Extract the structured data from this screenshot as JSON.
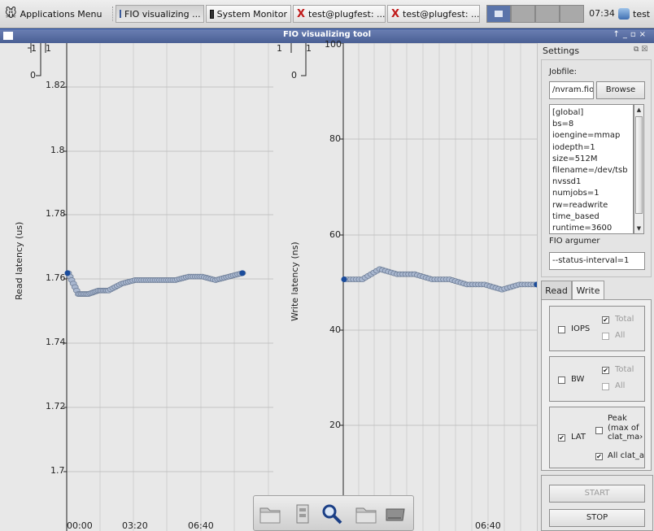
{
  "taskbar": {
    "apps_menu": "Applications Menu",
    "tasks": [
      {
        "label": "FIO visualizing ..."
      },
      {
        "label": "System Monitor"
      },
      {
        "label": "test@plugfest: ..."
      },
      {
        "label": "test@plugfest: ..."
      }
    ],
    "clock": "07:34",
    "user": "test"
  },
  "window": {
    "title": "FIO visualizing tool"
  },
  "read_plot": {
    "ylabel": "Read latency (us)",
    "yticks": [
      "1.82",
      "1.8",
      "1.78",
      "1.76",
      "1.74",
      "1.72",
      "1.7"
    ],
    "xticks": [
      "00:00",
      "03:20",
      "06:40"
    ],
    "mini_ticks": [
      "1",
      "1",
      "0"
    ]
  },
  "write_plot": {
    "ylabel": "Write latency (ns)",
    "yticks": [
      "100",
      "80",
      "60",
      "40",
      "20"
    ],
    "xticks": [
      "06:40"
    ],
    "mini_ticks": [
      "1",
      "1",
      "0"
    ]
  },
  "chart_data": [
    {
      "type": "scatter",
      "ylabel": "Read latency (us)",
      "xlabel": "",
      "ylim": [
        1.69,
        1.83
      ],
      "x_ticks": [
        "00:00",
        "03:20",
        "06:40"
      ],
      "x_seconds": [
        0,
        30,
        60,
        90,
        120,
        160,
        200,
        240,
        280,
        320,
        360,
        400,
        440,
        480,
        520
      ],
      "y": [
        1.764,
        1.758,
        1.758,
        1.759,
        1.759,
        1.761,
        1.762,
        1.762,
        1.762,
        1.762,
        1.763,
        1.763,
        1.762,
        1.763,
        1.764
      ]
    },
    {
      "type": "scatter",
      "ylabel": "Write latency (ns)",
      "xlabel": "",
      "ylim": [
        5,
        100
      ],
      "x_ticks": [
        "06:40"
      ],
      "x_seconds": [
        0,
        40,
        80,
        120,
        160,
        200,
        240,
        280,
        320,
        360,
        400,
        440
      ],
      "y": [
        54,
        54,
        56,
        55,
        55,
        54,
        54,
        53,
        53,
        52,
        53,
        53
      ]
    }
  ],
  "settings": {
    "title": "Settings",
    "jobfile_label": "Jobfile:",
    "jobfile_value": "/nvram.fio",
    "browse": "Browse",
    "jobfile_lines": [
      "[global]",
      "bs=8",
      "ioengine=mmap",
      "iodepth=1",
      "size=512M",
      "filename=/dev/tsb",
      "nvssd1",
      "numjobs=1",
      "rw=readwrite",
      "time_based",
      "runtime=3600"
    ],
    "fio_args_label": "FIO argumer",
    "fio_args_value": "--status-interval=1",
    "tab_read": "Read",
    "tab_write": "Write",
    "iops": "IOPS",
    "bw": "BW",
    "lat": "LAT",
    "total": "Total",
    "all": "All",
    "peak": "Peak",
    "peak_sub1": "(max of",
    "peak_sub2": "clat_ma›",
    "all_clat": "All clat_a",
    "start": "START",
    "stop": "STOP"
  },
  "colors": {
    "point_fill": "#a9b7cf",
    "point_stroke": "#6f7f98",
    "point_end": "#1a4c9c",
    "grid": "#cfcfcf"
  }
}
